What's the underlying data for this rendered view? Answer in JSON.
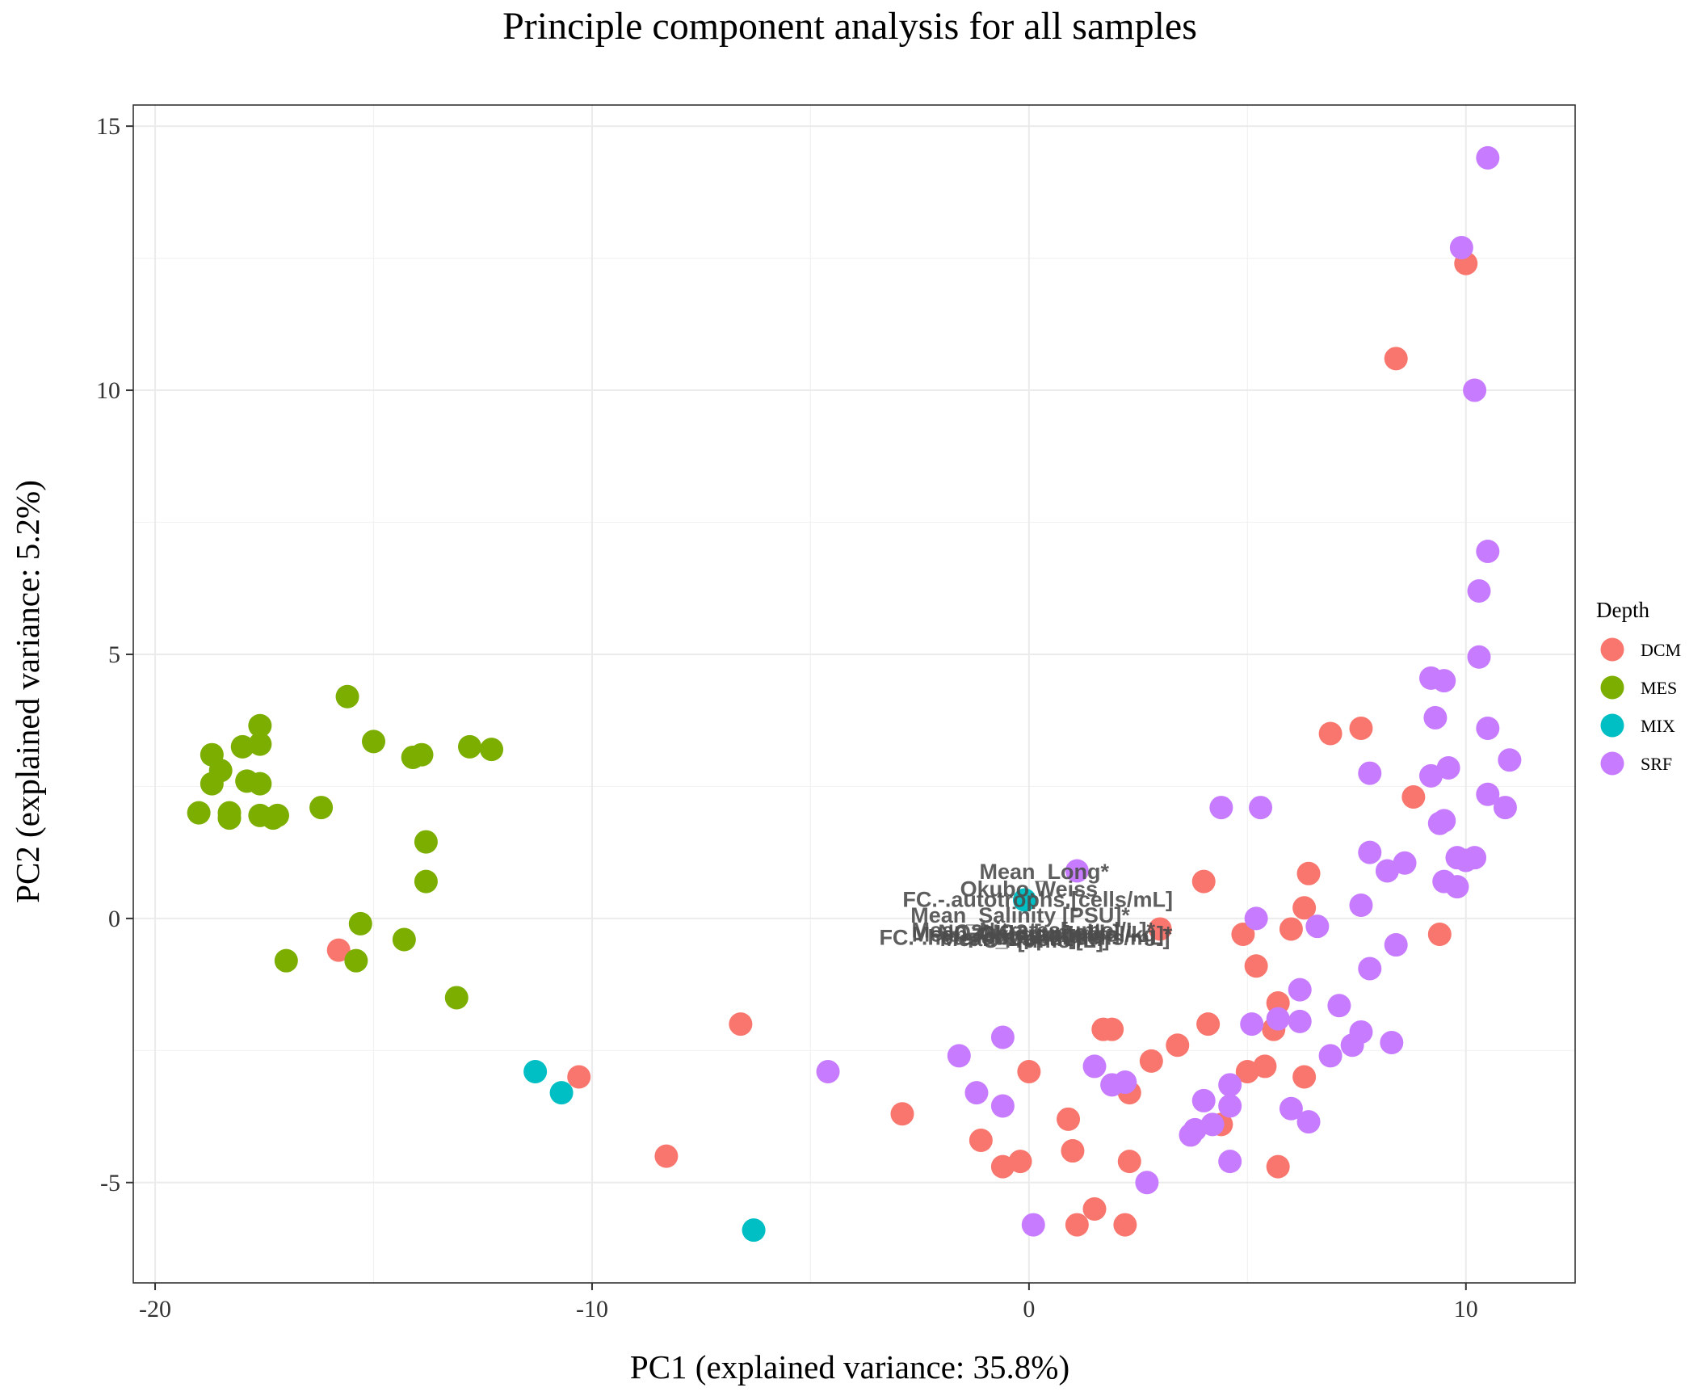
{
  "chart_data": {
    "type": "scatter",
    "title": "Principle component analysis for all samples",
    "xlabel": "PC1 (explained variance: 35.8%)",
    "ylabel": "PC2 (explained variance: 5.2%)",
    "xlim": [
      -20.5,
      12.5
    ],
    "ylim": [
      -6.9,
      15.4
    ],
    "xticks": [
      -20,
      -10,
      0,
      10
    ],
    "xtick_labels": [
      "-20",
      "-10",
      "0",
      "10"
    ],
    "yticks": [
      -5,
      0,
      5,
      10,
      15
    ],
    "ytick_labels": [
      "-5",
      "0",
      "5",
      "10",
      "15"
    ],
    "grid": true,
    "legend": {
      "title": "Depth",
      "position": "right",
      "entries": [
        "DCM",
        "MES",
        "MIX",
        "SRF"
      ]
    },
    "colors": {
      "DCM": "#F8766D",
      "MES": "#7CAE00",
      "MIX": "#00BFC4",
      "SRF": "#C77CFF"
    },
    "series": [
      {
        "name": "DCM",
        "points": [
          [
            10.0,
            12.4
          ],
          [
            8.4,
            10.6
          ],
          [
            6.9,
            3.5
          ],
          [
            7.6,
            3.6
          ],
          [
            8.8,
            2.3
          ],
          [
            6.4,
            0.85
          ],
          [
            4.0,
            0.7
          ],
          [
            6.3,
            0.2
          ],
          [
            6.0,
            -0.2
          ],
          [
            4.9,
            -0.3
          ],
          [
            9.4,
            -0.3
          ],
          [
            5.2,
            -0.9
          ],
          [
            5.7,
            -1.6
          ],
          [
            5.6,
            -2.1
          ],
          [
            4.1,
            -2.0
          ],
          [
            3.4,
            -2.4
          ],
          [
            2.8,
            -2.7
          ],
          [
            1.7,
            -2.1
          ],
          [
            1.9,
            -2.1
          ],
          [
            0.0,
            -2.9
          ],
          [
            5.0,
            -2.9
          ],
          [
            5.4,
            -2.8
          ],
          [
            6.3,
            -3.0
          ],
          [
            2.3,
            -3.3
          ],
          [
            0.9,
            -3.8
          ],
          [
            4.4,
            -3.9
          ],
          [
            -1.1,
            -4.2
          ],
          [
            1.0,
            -4.4
          ],
          [
            -0.6,
            -4.7
          ],
          [
            -0.2,
            -4.6
          ],
          [
            2.3,
            -4.6
          ],
          [
            5.7,
            -4.7
          ],
          [
            1.5,
            -5.5
          ],
          [
            1.1,
            -5.8
          ],
          [
            2.2,
            -5.8
          ],
          [
            -2.9,
            -3.7
          ],
          [
            -6.6,
            -2.0
          ],
          [
            -8.3,
            -4.5
          ],
          [
            -10.3,
            -3.0
          ],
          [
            -15.8,
            -0.6
          ],
          [
            3.0,
            -0.2
          ]
        ]
      },
      {
        "name": "MES",
        "points": [
          [
            -15.6,
            4.2
          ],
          [
            -15.0,
            3.35
          ],
          [
            -14.1,
            3.05
          ],
          [
            -13.9,
            3.1
          ],
          [
            -12.8,
            3.25
          ],
          [
            -12.3,
            3.2
          ],
          [
            -17.6,
            3.65
          ],
          [
            -17.6,
            3.3
          ],
          [
            -18.0,
            3.25
          ],
          [
            -18.7,
            3.1
          ],
          [
            -18.5,
            2.8
          ],
          [
            -18.7,
            2.55
          ],
          [
            -17.9,
            2.6
          ],
          [
            -17.6,
            2.55
          ],
          [
            -19.0,
            2.0
          ],
          [
            -18.3,
            2.0
          ],
          [
            -18.3,
            1.9
          ],
          [
            -17.6,
            1.95
          ],
          [
            -17.2,
            1.95
          ],
          [
            -17.3,
            1.9
          ],
          [
            -16.2,
            2.1
          ],
          [
            -13.8,
            1.45
          ],
          [
            -13.8,
            0.7
          ],
          [
            -15.3,
            -0.1
          ],
          [
            -14.3,
            -0.4
          ],
          [
            -17.0,
            -0.8
          ],
          [
            -15.4,
            -0.8
          ],
          [
            -13.1,
            -1.5
          ]
        ]
      },
      {
        "name": "MIX",
        "points": [
          [
            -0.1,
            0.35
          ],
          [
            -11.3,
            -2.9
          ],
          [
            -10.7,
            -3.3
          ],
          [
            -6.3,
            -5.9
          ]
        ]
      },
      {
        "name": "SRF",
        "points": [
          [
            10.5,
            14.4
          ],
          [
            9.9,
            12.7
          ],
          [
            10.2,
            10.0
          ],
          [
            10.5,
            6.95
          ],
          [
            10.3,
            6.2
          ],
          [
            10.3,
            4.95
          ],
          [
            9.2,
            4.55
          ],
          [
            9.5,
            4.5
          ],
          [
            9.3,
            3.8
          ],
          [
            10.5,
            3.6
          ],
          [
            11.0,
            3.0
          ],
          [
            9.6,
            2.85
          ],
          [
            7.8,
            2.75
          ],
          [
            9.2,
            2.7
          ],
          [
            10.5,
            2.35
          ],
          [
            10.9,
            2.1
          ],
          [
            4.4,
            2.1
          ],
          [
            5.3,
            2.1
          ],
          [
            9.4,
            1.8
          ],
          [
            9.5,
            1.85
          ],
          [
            7.8,
            1.25
          ],
          [
            8.6,
            1.05
          ],
          [
            9.8,
            1.15
          ],
          [
            10.0,
            1.1
          ],
          [
            10.2,
            1.15
          ],
          [
            8.2,
            0.9
          ],
          [
            1.1,
            0.9
          ],
          [
            9.5,
            0.7
          ],
          [
            9.8,
            0.6
          ],
          [
            7.6,
            0.25
          ],
          [
            5.2,
            0.0
          ],
          [
            6.6,
            -0.15
          ],
          [
            8.4,
            -0.5
          ],
          [
            7.8,
            -0.95
          ],
          [
            6.2,
            -1.35
          ],
          [
            7.1,
            -1.65
          ],
          [
            5.7,
            -1.9
          ],
          [
            6.2,
            -1.95
          ],
          [
            5.1,
            -2.0
          ],
          [
            7.6,
            -2.15
          ],
          [
            8.3,
            -2.35
          ],
          [
            7.4,
            -2.4
          ],
          [
            6.9,
            -2.6
          ],
          [
            -0.6,
            -2.25
          ],
          [
            -1.6,
            -2.6
          ],
          [
            -4.6,
            -2.9
          ],
          [
            1.5,
            -2.8
          ],
          [
            1.9,
            -3.15
          ],
          [
            2.2,
            -3.1
          ],
          [
            -1.2,
            -3.3
          ],
          [
            -0.6,
            -3.55
          ],
          [
            4.6,
            -3.15
          ],
          [
            4.0,
            -3.45
          ],
          [
            4.6,
            -3.55
          ],
          [
            6.0,
            -3.6
          ],
          [
            6.4,
            -3.85
          ],
          [
            4.2,
            -3.9
          ],
          [
            3.7,
            -4.1
          ],
          [
            3.8,
            -4.0
          ],
          [
            4.6,
            -4.6
          ],
          [
            2.7,
            -5.0
          ],
          [
            0.1,
            -5.8
          ]
        ]
      }
    ],
    "annotations": [
      "Mean_Long*",
      "Okubo.Weiss",
      "FC.-.autotrophs.[cells/mL]",
      "Mean_Salinity [PSU]*",
      "Mean_Nitrates[μmol/L]*",
      "Mean_Oxygen [umol/kg]*",
      "NO2NO3 [umol/L]",
      "FC.-.heterotrophs.[cells/mL]",
      "Mean_Depth [m]*",
      "Temperature",
      "PO4 [umol/L]",
      "Chlorophyll"
    ]
  }
}
